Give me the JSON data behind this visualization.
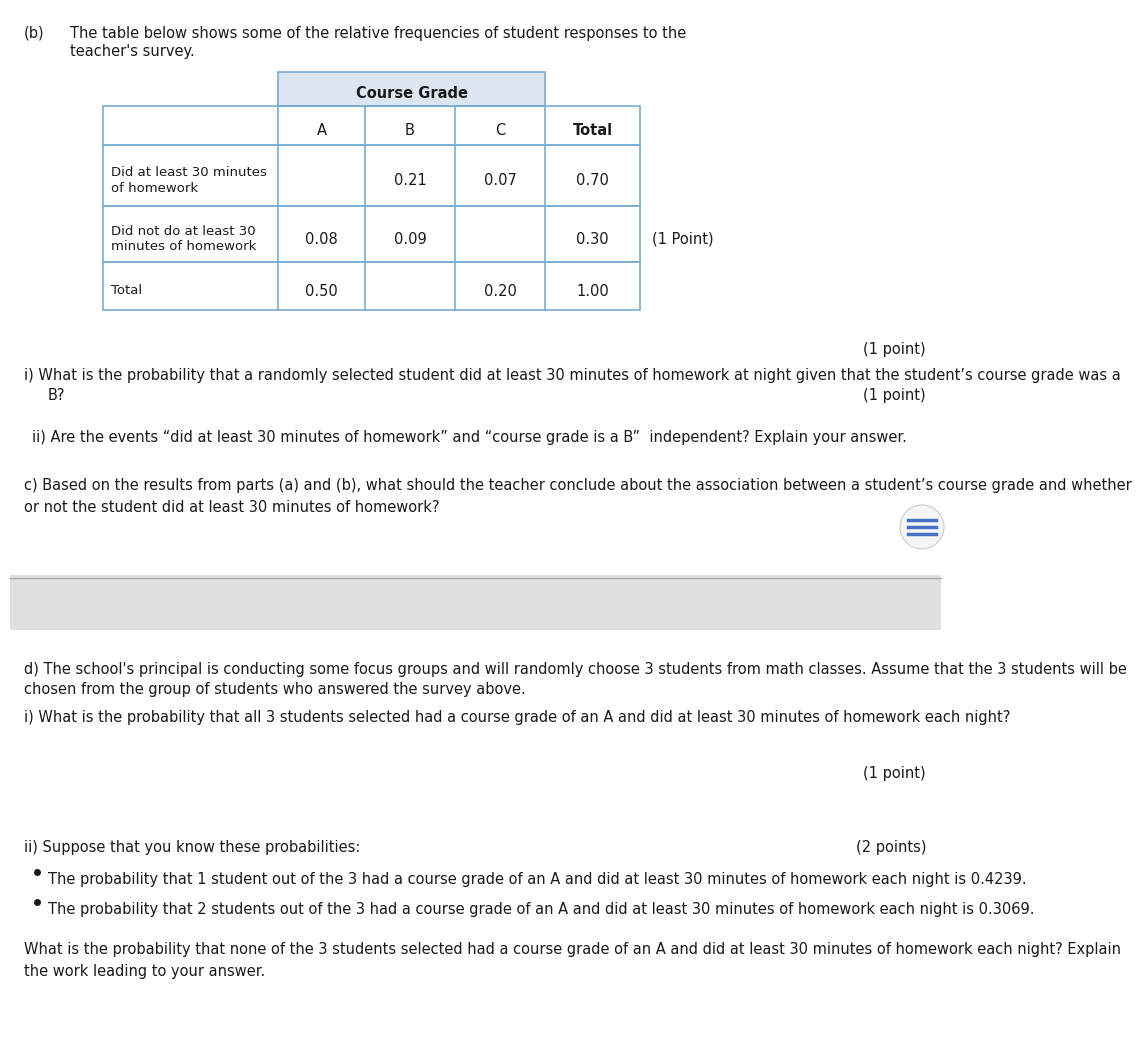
{
  "bg_color": "#ffffff",
  "separator_color": "#aaaaaa",
  "table_header_bg": "#dce6f1",
  "table_border_color": "#7aadcf",
  "text_color": "#000000",
  "course_grade_label": "Course Grade",
  "col_headers": [
    "A",
    "B",
    "C",
    "Total"
  ],
  "row_labels": [
    "Did at least 30 minutes\nof homework",
    "Did not do at least 30\nminutes of homework",
    "Total"
  ],
  "table_data": [
    [
      "",
      "0.21",
      "0.07",
      "0.70"
    ],
    [
      "0.08",
      "0.09",
      "",
      "0.30"
    ],
    [
      "0.50",
      "",
      "0.20",
      "1.00"
    ]
  ],
  "one_point_table": "(1 Point)",
  "one_point_1": "(1 point)",
  "one_point_2": "(1 point)",
  "one_point_d": "(1 point)",
  "two_points": "(2 points)",
  "bullet1": "The probability that 1 student out of the 3 had a course grade of an A and did at least 30 minutes of homework each night is 0.4239.",
  "bullet2": "The probability that 2 students out of the 3 had a course grade of an A and did at least 30 minutes of homework each night is 0.3069.",
  "scroll_color": "#4472c4",
  "scroll_bg": "#f5f5f5",
  "gray_band_color": "#e0e0e0",
  "gray_band_color2": "#f0f0f0"
}
